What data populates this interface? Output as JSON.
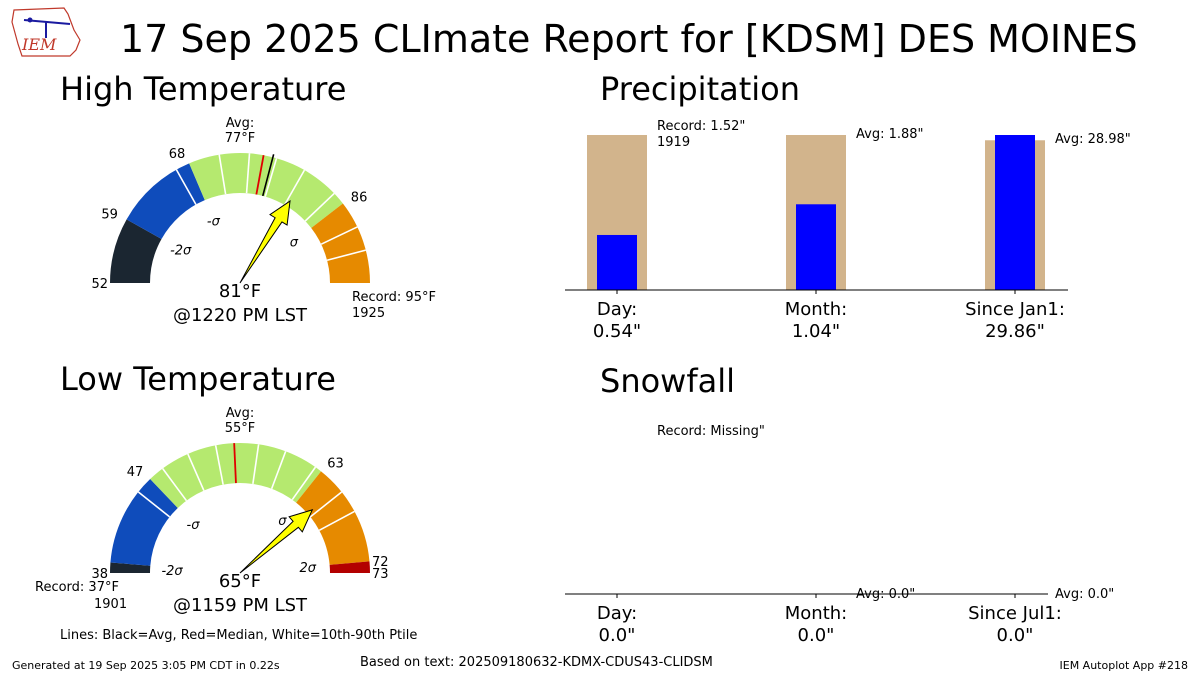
{
  "header": {
    "title": "17 Sep 2025 CLImate Report for [KDSM] DES MOINES",
    "logo_text": "IEM"
  },
  "footer": {
    "generated": "Generated at 19 Sep 2025 3:05 PM CDT in 0.22s",
    "based_on": "Based on text: 202509180632-KDMX-CDUS43-CLIDSM",
    "app": "IEM Autoplot App #218",
    "lines_note": "Lines: Black=Avg, Red=Median, White=10th-90th Ptile"
  },
  "colors": {
    "very_cold": "#1b2631",
    "cold": "#0f4cbb",
    "normal": "#b5e96f",
    "warm": "#e68a00",
    "record_band": "#b30000",
    "needle": "#ffff00",
    "precip_avg_bar": "#d2b48c",
    "precip_obs_bar": "#0000ff"
  },
  "chart_data": [
    {
      "type": "gauge",
      "panel_title": "High Temperature",
      "range": [
        52,
        95
      ],
      "tick_labels": [
        "52",
        "59",
        "68",
        "86"
      ],
      "tick_values": [
        52,
        59,
        68,
        86
      ],
      "sigma_labels": [
        {
          "label": "-2σ",
          "value": 59
        },
        {
          "label": "-σ",
          "value": 68
        },
        {
          "label": "σ",
          "value": 86
        }
      ],
      "bands": [
        {
          "from": 52,
          "to": 59,
          "color": "very_cold"
        },
        {
          "from": 59,
          "to": 68,
          "color": "cold"
        },
        {
          "from": 68,
          "to": 86,
          "color": "normal"
        },
        {
          "from": 86,
          "to": 95,
          "color": "warm"
        }
      ],
      "percentile_lines": [
        66.5,
        71.3,
        74.5,
        77.4,
        80.6,
        84.6,
        88.9,
        91.5
      ],
      "avg": 77,
      "avg_label": "Avg:",
      "avg_value_label": "77°F",
      "median": 76,
      "observed": 81,
      "observed_label": "81°F",
      "time_label": "@1220 PM LST",
      "record_text": "Record: 95°F",
      "record_year": "1925"
    },
    {
      "type": "gauge",
      "panel_title": "Low Temperature",
      "range": [
        38,
        73
      ],
      "tick_labels": [
        "38",
        "47",
        "63",
        "72",
        "73"
      ],
      "tick_values": [
        38,
        47,
        63,
        72,
        73
      ],
      "sigma_labels": [
        {
          "label": "-2σ",
          "value": 38.5
        },
        {
          "label": "-σ",
          "value": 47
        },
        {
          "label": "σ",
          "value": 63
        },
        {
          "label": "2σ",
          "value": 72
        }
      ],
      "bands": [
        {
          "from": 38,
          "to": 38.9,
          "color": "very_cold"
        },
        {
          "from": 38.9,
          "to": 47,
          "color": "cold"
        },
        {
          "from": 47,
          "to": 63,
          "color": "normal"
        },
        {
          "from": 63,
          "to": 72,
          "color": "warm"
        },
        {
          "from": 72,
          "to": 73,
          "color": "record_band"
        }
      ],
      "percentile_lines": [
        45.5,
        48.4,
        50.9,
        53.4,
        57.1,
        59.5,
        62.4,
        65.5,
        67.5
      ],
      "avg": 55,
      "avg_label": "Avg:",
      "avg_value_label": "55°F",
      "median": 55,
      "observed": 65,
      "observed_label": "65°F",
      "time_label": "@1159 PM LST",
      "record_text": "Record: 37°F",
      "record_year": "1901"
    },
    {
      "type": "bar",
      "panel_title": "Precipitation",
      "ylim": [
        0,
        1
      ],
      "categories": [
        "Day:",
        "Month:",
        "Since Jan1:"
      ],
      "category_values": [
        "0.54\"",
        "1.04\"",
        "29.86\""
      ],
      "bars": [
        {
          "normalized_avg_bar": 1.0,
          "normalized_obs_bar": 0.355,
          "note": "Record: 1.52\"",
          "note2": "1919"
        },
        {
          "normalized_avg_bar": 1.0,
          "normalized_obs_bar": 0.553,
          "note": "Avg: 1.88\"",
          "note2": ""
        },
        {
          "normalized_avg_bar": 0.966,
          "normalized_obs_bar": 1.0,
          "note": "Avg: 28.98\"",
          "note2": ""
        }
      ]
    },
    {
      "type": "bar",
      "panel_title": "Snowfall",
      "ylim": [
        0,
        1
      ],
      "categories": [
        "Day:",
        "Month:",
        "Since Jul1:"
      ],
      "category_values": [
        "0.0\"",
        "0.0\"",
        "0.0\""
      ],
      "bars": [
        {
          "normalized_avg_bar": 0,
          "normalized_obs_bar": 0,
          "note": "Record: Missing\"",
          "note2": ""
        },
        {
          "normalized_avg_bar": 0,
          "normalized_obs_bar": 0,
          "note": "Avg: 0.0\"",
          "note2": ""
        },
        {
          "normalized_avg_bar": 0,
          "normalized_obs_bar": 0,
          "note": "Avg: 0.0\"",
          "note2": ""
        }
      ]
    }
  ]
}
